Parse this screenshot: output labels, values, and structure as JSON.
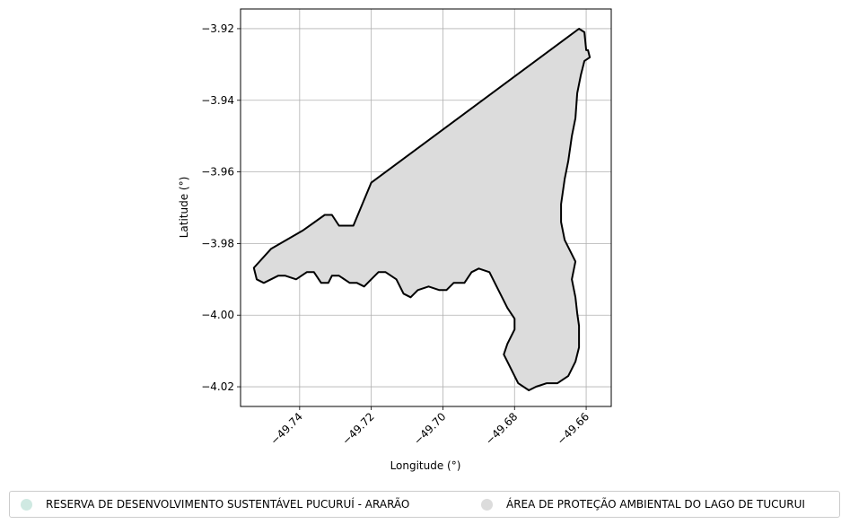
{
  "chart_data": {
    "type": "map",
    "title": "",
    "xlabel": "Longitude (°)",
    "ylabel": "Latitude (°)",
    "xlim": [
      -49.7565,
      -49.653
    ],
    "ylim": [
      -4.0255,
      -3.9145
    ],
    "xticks": [
      -49.74,
      -49.72,
      -49.7,
      -49.68,
      -49.66
    ],
    "xtick_labels": [
      "−49.74",
      "−49.72",
      "−49.70",
      "−49.68",
      "−49.66"
    ],
    "yticks": [
      -3.92,
      -3.94,
      -3.96,
      -3.98,
      -4.0,
      -4.02
    ],
    "ytick_labels": [
      "−3.92",
      "−3.94",
      "−3.96",
      "−3.98",
      "−4.00",
      "−4.02"
    ],
    "grid": true,
    "legend_position": "bottom",
    "polygon_fill": "#dcdcdc",
    "polygon_stroke": "#000000",
    "polygon_vertices_lonlat": [
      [
        -49.7528,
        -3.9868
      ],
      [
        -49.748,
        -3.9815
      ],
      [
        -49.739,
        -3.9763
      ],
      [
        -49.733,
        -3.972
      ],
      [
        -49.731,
        -3.972
      ],
      [
        -49.729,
        -3.975
      ],
      [
        -49.725,
        -3.975
      ],
      [
        -49.72,
        -3.963
      ],
      [
        -49.662,
        -3.92
      ],
      [
        -49.6605,
        -3.921
      ],
      [
        -49.66,
        -3.926
      ],
      [
        -49.6595,
        -3.926
      ],
      [
        -49.659,
        -3.928
      ],
      [
        -49.6605,
        -3.929
      ],
      [
        -49.6615,
        -3.933
      ],
      [
        -49.6625,
        -3.938
      ],
      [
        -49.663,
        -3.945
      ],
      [
        -49.664,
        -3.95
      ],
      [
        -49.665,
        -3.957
      ],
      [
        -49.666,
        -3.962
      ],
      [
        -49.667,
        -3.969
      ],
      [
        -49.667,
        -3.974
      ],
      [
        -49.666,
        -3.979
      ],
      [
        -49.663,
        -3.985
      ],
      [
        -49.664,
        -3.99
      ],
      [
        -49.663,
        -3.995
      ],
      [
        -49.6625,
        -3.9995
      ],
      [
        -49.662,
        -4.003
      ],
      [
        -49.662,
        -4.009
      ],
      [
        -49.663,
        -4.013
      ],
      [
        -49.665,
        -4.017
      ],
      [
        -49.668,
        -4.019
      ],
      [
        -49.671,
        -4.019
      ],
      [
        -49.674,
        -4.02
      ],
      [
        -49.676,
        -4.021
      ],
      [
        -49.679,
        -4.019
      ],
      [
        -49.681,
        -4.015
      ],
      [
        -49.683,
        -4.011
      ],
      [
        -49.682,
        -4.008
      ],
      [
        -49.68,
        -4.004
      ],
      [
        -49.68,
        -4.001
      ],
      [
        -49.682,
        -3.998
      ],
      [
        -49.685,
        -3.992
      ],
      [
        -49.687,
        -3.988
      ],
      [
        -49.69,
        -3.987
      ],
      [
        -49.692,
        -3.988
      ],
      [
        -49.694,
        -3.991
      ],
      [
        -49.697,
        -3.991
      ],
      [
        -49.699,
        -3.993
      ],
      [
        -49.701,
        -3.993
      ],
      [
        -49.704,
        -3.992
      ],
      [
        -49.707,
        -3.993
      ],
      [
        -49.709,
        -3.995
      ],
      [
        -49.711,
        -3.994
      ],
      [
        -49.713,
        -3.99
      ],
      [
        -49.716,
        -3.988
      ],
      [
        -49.718,
        -3.988
      ],
      [
        -49.72,
        -3.99
      ],
      [
        -49.722,
        -3.992
      ],
      [
        -49.724,
        -3.991
      ],
      [
        -49.726,
        -3.991
      ],
      [
        -49.729,
        -3.989
      ],
      [
        -49.731,
        -3.989
      ],
      [
        -49.732,
        -3.991
      ],
      [
        -49.734,
        -3.991
      ],
      [
        -49.736,
        -3.988
      ],
      [
        -49.738,
        -3.988
      ],
      [
        -49.741,
        -3.99
      ],
      [
        -49.744,
        -3.989
      ],
      [
        -49.746,
        -3.989
      ],
      [
        -49.748,
        -3.99
      ],
      [
        -49.75,
        -3.991
      ],
      [
        -49.752,
        -3.99
      ]
    ]
  },
  "legend": {
    "items": [
      {
        "label": "RESERVA DE DESENVOLVIMENTO SUSTENTÁVEL PUCURUÍ - ARARÃO",
        "color": "#cfe9e2"
      },
      {
        "label": "ÁREA DE PROTEÇÃO AMBIENTAL DO LAGO DE TUCURUI",
        "color": "#dcdcdc"
      }
    ]
  }
}
